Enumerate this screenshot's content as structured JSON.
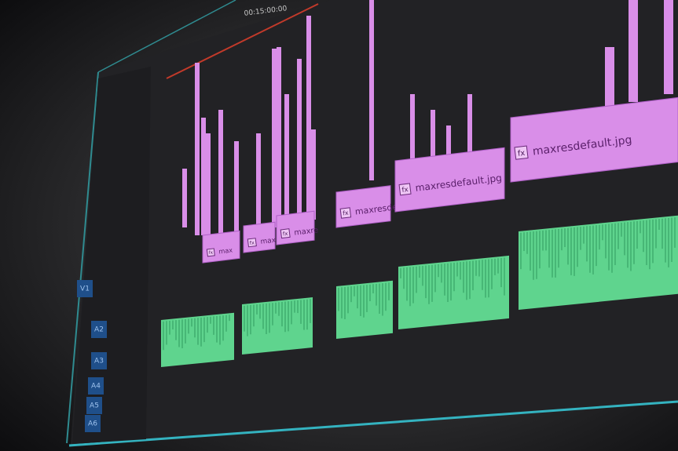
{
  "timeline": {
    "timecode": "00:15:00:00",
    "tracks": [
      "V1",
      "A2",
      "A3",
      "A4",
      "A5",
      "A6"
    ],
    "video_clips": [
      {
        "badge": "fx",
        "label": "max"
      },
      {
        "badge": "fx",
        "label": "max"
      },
      {
        "badge": "fx",
        "label": "maxre"
      },
      {
        "badge": "fx",
        "label": "maxresde"
      },
      {
        "badge": "fx",
        "label": "maxresdefault.jpg"
      },
      {
        "badge": "fx",
        "label": "maxresdefault.jpg"
      }
    ]
  }
}
